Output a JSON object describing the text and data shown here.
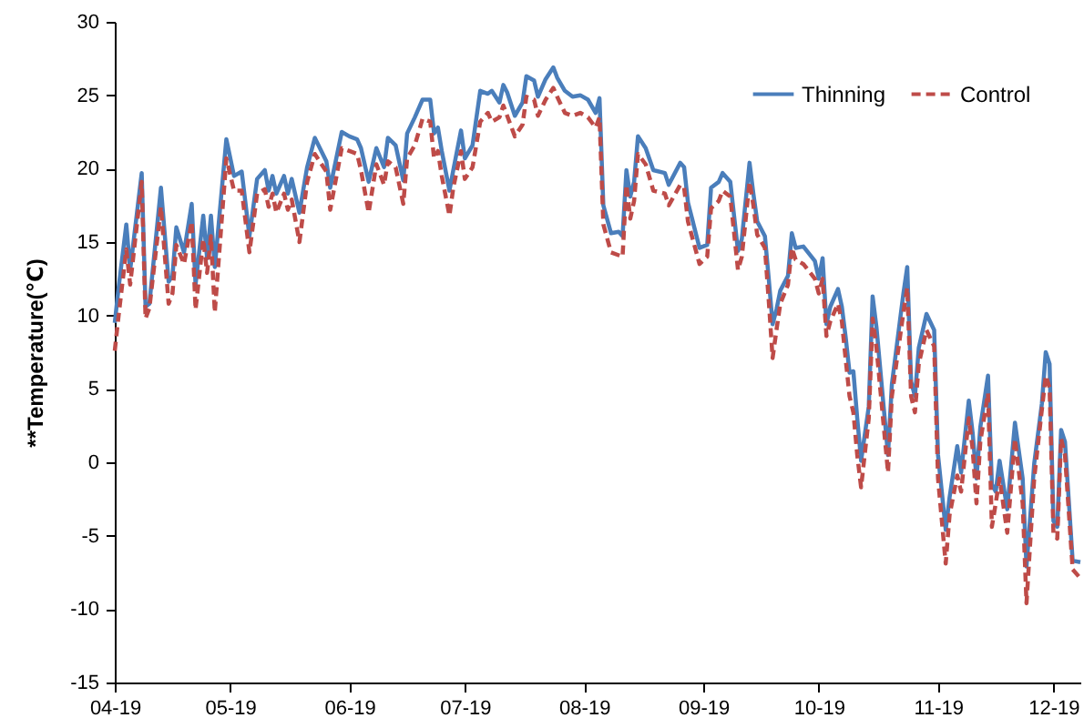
{
  "chart_data": {
    "type": "line",
    "ylabel": "**Temperature(℃)",
    "x": [
      "2019-04-01",
      "2019-04-02",
      "2019-04-04",
      "2019-04-05",
      "2019-04-08",
      "2019-04-09",
      "2019-04-10",
      "2019-04-13",
      "2019-04-15",
      "2019-04-16",
      "2019-04-17",
      "2019-04-19",
      "2019-04-21",
      "2019-04-22",
      "2019-04-24",
      "2019-04-25",
      "2019-04-26",
      "2019-04-27",
      "2019-04-30",
      "2019-05-02",
      "2019-05-04",
      "2019-05-06",
      "2019-05-08",
      "2019-05-10",
      "2019-05-11",
      "2019-05-12",
      "2019-05-13",
      "2019-05-15",
      "2019-05-16",
      "2019-05-17",
      "2019-05-19",
      "2019-05-21",
      "2019-05-23",
      "2019-05-26",
      "2019-05-27",
      "2019-05-30",
      "2019-06-01",
      "2019-06-03",
      "2019-06-04",
      "2019-06-06",
      "2019-06-08",
      "2019-06-10",
      "2019-06-11",
      "2019-06-13",
      "2019-06-15",
      "2019-06-16",
      "2019-06-18",
      "2019-06-20",
      "2019-06-22",
      "2019-06-23",
      "2019-06-24",
      "2019-06-25",
      "2019-06-27",
      "2019-06-28",
      "2019-06-30",
      "2019-07-01",
      "2019-07-03",
      "2019-07-05",
      "2019-07-07",
      "2019-07-08",
      "2019-07-10",
      "2019-07-11",
      "2019-07-12",
      "2019-07-14",
      "2019-07-16",
      "2019-07-17",
      "2019-07-19",
      "2019-07-20",
      "2019-07-22",
      "2019-07-24",
      "2019-07-25",
      "2019-07-27",
      "2019-07-29",
      "2019-07-31",
      "2019-08-02",
      "2019-08-04",
      "2019-08-05",
      "2019-08-06",
      "2019-08-08",
      "2019-08-10",
      "2019-08-11",
      "2019-08-12",
      "2019-08-13",
      "2019-08-14",
      "2019-08-15",
      "2019-08-17",
      "2019-08-19",
      "2019-08-22",
      "2019-08-23",
      "2019-08-26",
      "2019-08-27",
      "2019-08-28",
      "2019-08-31",
      "2019-09-02",
      "2019-09-03",
      "2019-09-05",
      "2019-09-06",
      "2019-09-08",
      "2019-09-10",
      "2019-09-11",
      "2019-09-13",
      "2019-09-14",
      "2019-09-15",
      "2019-09-17",
      "2019-09-18",
      "2019-09-19",
      "2019-09-20",
      "2019-09-21",
      "2019-09-23",
      "2019-09-24",
      "2019-09-25",
      "2019-09-27",
      "2019-09-30",
      "2019-10-01",
      "2019-10-02",
      "2019-10-03",
      "2019-10-04",
      "2019-10-06",
      "2019-10-07",
      "2019-10-08",
      "2019-10-09",
      "2019-10-10",
      "2019-10-11",
      "2019-10-12",
      "2019-10-14",
      "2019-10-15",
      "2019-10-16",
      "2019-10-19",
      "2019-10-20",
      "2019-10-23",
      "2019-10-24",
      "2019-10-25",
      "2019-10-26",
      "2019-10-27",
      "2019-10-29",
      "2019-10-31",
      "2019-11-01",
      "2019-11-03",
      "2019-11-04",
      "2019-11-06",
      "2019-11-07",
      "2019-11-09",
      "2019-11-10",
      "2019-11-11",
      "2019-11-12",
      "2019-11-14",
      "2019-11-15",
      "2019-11-16",
      "2019-11-17",
      "2019-11-19",
      "2019-11-21",
      "2019-11-23",
      "2019-11-24",
      "2019-11-26",
      "2019-11-28",
      "2019-11-29",
      "2019-11-30",
      "2019-12-01",
      "2019-12-02",
      "2019-12-03",
      "2019-12-04",
      "2019-12-06",
      "2019-12-08"
    ],
    "series": [
      {
        "name": "Thinning",
        "color": "#4a7ebb",
        "line_style": "solid",
        "values": [
          9.5,
          11.9,
          16.2,
          13.1,
          19.7,
          10.6,
          10.8,
          18.7,
          12.3,
          12.7,
          16.0,
          14.3,
          17.6,
          12.1,
          16.8,
          13.9,
          16.8,
          13.3,
          22.0,
          19.5,
          19.8,
          15.4,
          19.3,
          19.9,
          18.5,
          19.5,
          18.3,
          19.5,
          18.3,
          19.3,
          17.0,
          20.1,
          22.1,
          20.5,
          18.7,
          22.5,
          22.2,
          22.0,
          21.4,
          19.1,
          21.4,
          20.1,
          22.1,
          21.6,
          19.2,
          22.4,
          23.5,
          24.7,
          24.7,
          22.4,
          22.8,
          21.2,
          18.5,
          19.9,
          22.6,
          20.7,
          21.6,
          25.3,
          25.1,
          25.3,
          24.5,
          25.7,
          25.2,
          23.6,
          24.5,
          26.3,
          26.0,
          24.9,
          26.1,
          26.9,
          26.2,
          25.3,
          24.9,
          25.0,
          24.7,
          23.8,
          24.8,
          17.5,
          15.6,
          15.7,
          15.4,
          19.9,
          18.1,
          19.1,
          22.2,
          21.4,
          19.9,
          19.7,
          18.9,
          20.4,
          20.1,
          17.7,
          14.6,
          14.8,
          18.7,
          19.1,
          19.7,
          19.1,
          14.4,
          15.2,
          20.4,
          18.3,
          16.4,
          15.4,
          12.5,
          9.4,
          10.4,
          11.7,
          12.7,
          15.6,
          14.6,
          14.7,
          13.7,
          12.5,
          13.9,
          9.4,
          10.6,
          11.8,
          10.6,
          8.5,
          6.1,
          6.2,
          3.0,
          0.1,
          3.8,
          11.3,
          9.2,
          0.5,
          5.3,
          11.5,
          13.3,
          5.5,
          4.5,
          7.8,
          10.1,
          9.0,
          0.5,
          -4.6,
          -2.4,
          1.1,
          -0.7,
          4.2,
          2.0,
          -1.1,
          2.4,
          5.9,
          -1.5,
          -2.0,
          0.1,
          -3.2,
          2.7,
          -1.1,
          -7.1,
          -0.1,
          4.0,
          7.5,
          6.7,
          -4.0,
          -4.4,
          2.2,
          1.4,
          -6.7,
          -6.8
        ]
      },
      {
        "name": "Control",
        "color": "#be4b48",
        "line_style": "dashed",
        "values": [
          7.6,
          10.0,
          14.5,
          12.1,
          19.1,
          9.8,
          10.5,
          17.4,
          10.8,
          11.5,
          14.8,
          13.5,
          16.4,
          10.4,
          15.2,
          12.9,
          15.4,
          10.2,
          20.7,
          18.5,
          18.5,
          14.3,
          18.3,
          18.6,
          17.4,
          18.3,
          17.0,
          18.3,
          17.2,
          17.9,
          15.0,
          19.1,
          21.0,
          19.8,
          17.2,
          21.4,
          21.2,
          21.0,
          19.9,
          17.0,
          20.3,
          18.9,
          20.5,
          20.1,
          17.6,
          20.7,
          21.6,
          23.4,
          23.2,
          20.7,
          21.2,
          19.5,
          16.8,
          18.7,
          21.2,
          19.3,
          20.1,
          23.2,
          23.8,
          23.2,
          23.5,
          24.3,
          23.6,
          22.2,
          23.0,
          24.9,
          24.7,
          23.6,
          24.7,
          25.5,
          24.9,
          23.8,
          23.6,
          23.8,
          23.5,
          22.8,
          23.5,
          16.2,
          14.3,
          14.1,
          14.0,
          18.9,
          16.6,
          17.8,
          21.0,
          20.3,
          18.5,
          18.3,
          17.5,
          18.9,
          18.7,
          16.4,
          13.5,
          14.0,
          17.3,
          17.8,
          18.5,
          18.1,
          13.1,
          14.0,
          19.1,
          17.5,
          15.5,
          14.6,
          11.0,
          7.1,
          9.0,
          10.8,
          12.1,
          14.6,
          13.8,
          13.5,
          12.5,
          11.5,
          12.5,
          8.6,
          9.6,
          10.8,
          9.6,
          7.0,
          4.5,
          3.4,
          0.5,
          -1.7,
          3.0,
          9.8,
          7.8,
          -0.7,
          4.5,
          10.2,
          11.9,
          4.5,
          3.4,
          6.7,
          9.0,
          7.9,
          -1.1,
          -6.9,
          -3.6,
          -0.9,
          -2.0,
          3.0,
          0.9,
          -2.8,
          1.4,
          4.7,
          -4.4,
          -2.8,
          -1.1,
          -4.8,
          1.6,
          -2.8,
          -9.6,
          -1.1,
          3.6,
          5.9,
          5.1,
          -4.8,
          -5.2,
          1.6,
          0.5,
          -7.3,
          -7.9
        ]
      }
    ],
    "xlim": [
      "2019-04-01",
      "2019-12-08"
    ],
    "xticks": [
      {
        "value": "2019-04-01",
        "label": "04-19"
      },
      {
        "value": "2019-05-01",
        "label": "05-19"
      },
      {
        "value": "2019-06-01",
        "label": "06-19"
      },
      {
        "value": "2019-07-01",
        "label": "07-19"
      },
      {
        "value": "2019-08-01",
        "label": "08-19"
      },
      {
        "value": "2019-09-01",
        "label": "09-19"
      },
      {
        "value": "2019-10-01",
        "label": "10-19"
      },
      {
        "value": "2019-11-01",
        "label": "11-19"
      },
      {
        "value": "2019-12-01",
        "label": "12-19"
      }
    ],
    "ylim": [
      -15,
      30
    ],
    "yticks": [
      -15,
      -10,
      -5,
      0,
      5,
      10,
      15,
      20,
      25,
      30
    ],
    "legend": "top right",
    "marker": "none"
  }
}
